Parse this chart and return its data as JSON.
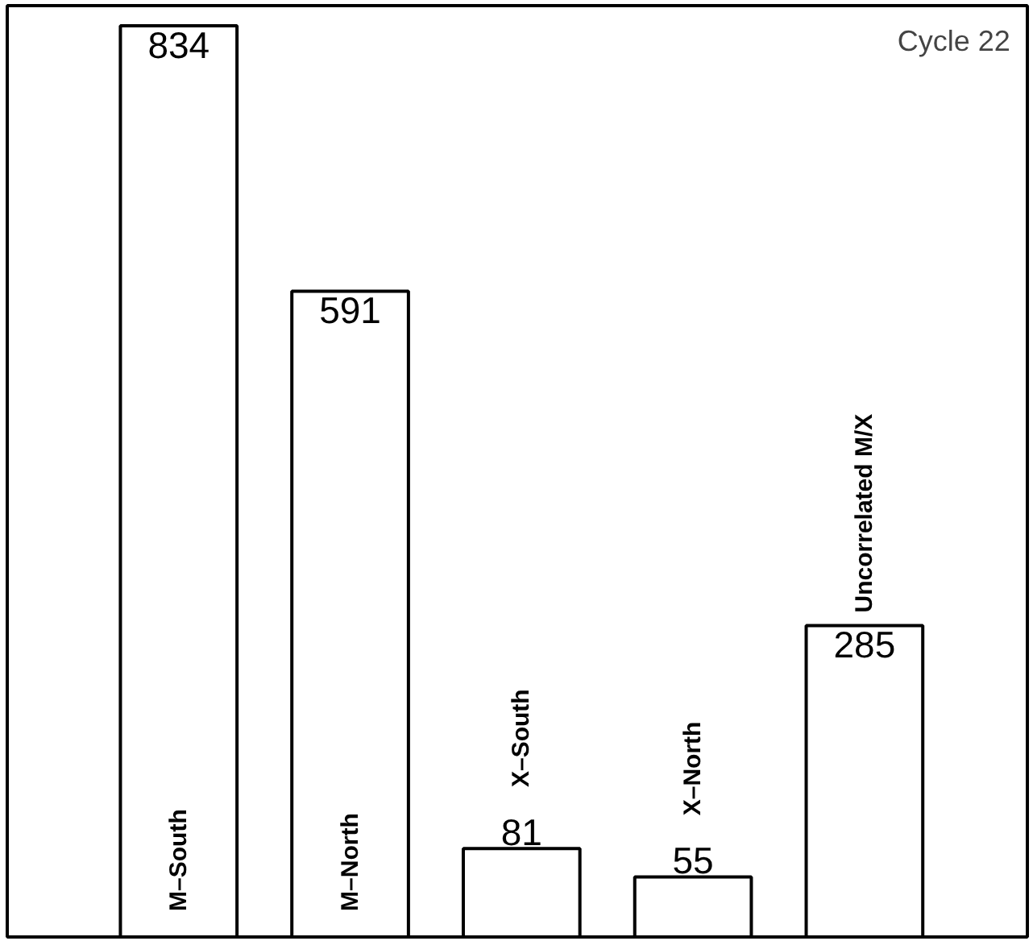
{
  "chart_data": {
    "type": "bar",
    "categories": [
      "M–South",
      "M–North",
      "X–South",
      "X–North",
      "Uncorrelated M/X"
    ],
    "values": [
      834,
      591,
      81,
      55,
      285
    ],
    "color": "#ffffff",
    "data_labels": true,
    "annotations": [
      "Cycle 22"
    ]
  }
}
